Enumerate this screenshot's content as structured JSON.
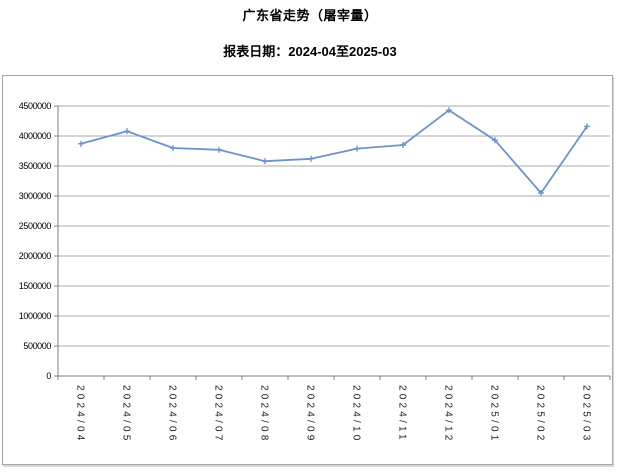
{
  "header": {
    "title": "广东省走势（屠宰量）",
    "date_range": "报表日期：2024-04至2025-03"
  },
  "chart_data": {
    "type": "line",
    "title": "广东省走势（屠宰量）",
    "subtitle": "报表日期：2024-04至2025-03",
    "categories": [
      "2024/04",
      "2024/05",
      "2024/06",
      "2024/07",
      "2024/08",
      "2024/09",
      "2024/10",
      "2024/11",
      "2024/12",
      "2025/01",
      "2025/02",
      "2025/03"
    ],
    "series": [
      {
        "name": "屠宰量",
        "values": [
          3870000,
          4080000,
          3800000,
          3770000,
          3580000,
          3620000,
          3790000,
          3850000,
          4430000,
          3930000,
          3050000,
          4160000
        ]
      }
    ],
    "ylim": [
      0,
      4500000
    ],
    "y_tick_interval": 500000,
    "y_tick_labels": [
      "0",
      "500000",
      "1000000",
      "1500000",
      "2000000",
      "2500000",
      "3000000",
      "3500000",
      "4000000",
      "4500000"
    ],
    "grid": "horizontal",
    "legend": "none",
    "x_label_rotation_deg": 90,
    "marker": "plus",
    "colors": {
      "line": "#6d93ce",
      "gridline": "#a8a8a8",
      "axis": "#7f7f7f",
      "labels": "#000000",
      "frame_border": "#a6a6a6",
      "background": "#ffffff"
    }
  }
}
